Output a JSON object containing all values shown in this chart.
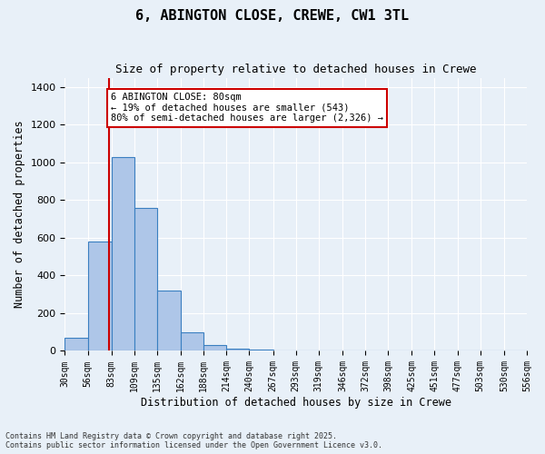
{
  "title": "6, ABINGTON CLOSE, CREWE, CW1 3TL",
  "subtitle": "Size of property relative to detached houses in Crewe",
  "xlabel": "Distribution of detached houses by size in Crewe",
  "ylabel": "Number of detached properties",
  "bin_edges": [
    30,
    56,
    83,
    109,
    135,
    162,
    188,
    214,
    240,
    267,
    293,
    319,
    346,
    372,
    398,
    425,
    451,
    477,
    503,
    530,
    556
  ],
  "bar_heights": [
    70,
    580,
    1030,
    760,
    320,
    100,
    30,
    10,
    5,
    3,
    2,
    1,
    1,
    0,
    0,
    0,
    0,
    0,
    0,
    0
  ],
  "bar_color": "#aec6e8",
  "bar_edge_color": "#3a7fc1",
  "property_size": 80,
  "vline_color": "#cc0000",
  "annotation_text": "6 ABINGTON CLOSE: 80sqm\n← 19% of detached houses are smaller (543)\n80% of semi-detached houses are larger (2,326) →",
  "annotation_box_color": "#cc0000",
  "annotation_fill": "#ffffff",
  "ylim": [
    0,
    1450
  ],
  "yticks": [
    0,
    200,
    400,
    600,
    800,
    1000,
    1200,
    1400
  ],
  "bg_color": "#e8f0f8",
  "grid_color": "#ffffff",
  "footer": "Contains HM Land Registry data © Crown copyright and database right 2025.\nContains public sector information licensed under the Open Government Licence v3.0."
}
